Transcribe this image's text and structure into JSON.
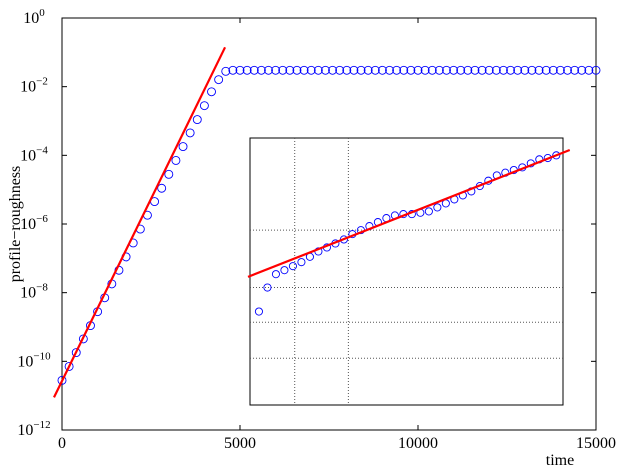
{
  "chart_data": [
    {
      "type": "scatter",
      "xlabel": "time",
      "ylabel": "profile−roughness",
      "xlim": [
        0,
        15000
      ],
      "ylim": [
        1e-12,
        1
      ],
      "yscale": "log",
      "xticks": [
        0,
        5000,
        10000,
        15000
      ],
      "yticks": [
        {
          "value": 1e-12,
          "label": "10",
          "exponent": "−12"
        },
        {
          "value": 1e-10,
          "label": "10",
          "exponent": "−10"
        },
        {
          "value": 1e-08,
          "label": "10",
          "exponent": "−8"
        },
        {
          "value": 1e-06,
          "label": "10",
          "exponent": "−6"
        },
        {
          "value": 0.0001,
          "label": "10",
          "exponent": "−4"
        },
        {
          "value": 0.01,
          "label": "10",
          "exponent": "−2"
        },
        {
          "value": 1,
          "label": "10",
          "exponent": "0"
        }
      ],
      "series": [
        {
          "mode": "markers",
          "color": "#0000ff",
          "x": [
            0,
            200,
            400,
            600,
            800,
            1000,
            1200,
            1400,
            1600,
            1800,
            2000,
            2200,
            2400,
            2600,
            2800,
            3000,
            3200,
            3400,
            3600,
            3800,
            4000,
            4200,
            4400,
            4600,
            4800,
            5000,
            5200,
            5400,
            5600,
            5800,
            6000,
            6200,
            6400,
            6600,
            6800,
            7000,
            7200,
            7400,
            7600,
            7800,
            8000,
            8200,
            8400,
            8600,
            8800,
            9000,
            9200,
            9400,
            9600,
            9800,
            10000,
            10200,
            10400,
            10600,
            10800,
            11000,
            11200,
            11400,
            11600,
            11800,
            12000,
            12200,
            12400,
            12600,
            12800,
            13000,
            13200,
            13400,
            13600,
            13800,
            14000,
            14200,
            14400,
            14600,
            14800,
            15000
          ],
          "values": [
            2.8e-11,
            7.1e-11,
            1.8e-10,
            4.5e-10,
            1.1e-09,
            2.8e-09,
            7.1e-09,
            1.8e-08,
            4.5e-08,
            1.1e-07,
            2.8e-07,
            7.1e-07,
            1.8e-06,
            4.5e-06,
            1.1e-05,
            2.8e-05,
            7.1e-05,
            0.00018,
            0.00045,
            0.0011,
            0.0028,
            0.0071,
            0.016,
            0.028,
            0.03,
            0.03,
            0.03,
            0.03,
            0.03,
            0.03,
            0.03,
            0.03,
            0.03,
            0.03,
            0.03,
            0.03,
            0.03,
            0.03,
            0.03,
            0.03,
            0.03,
            0.03,
            0.03,
            0.03,
            0.03,
            0.03,
            0.03,
            0.03,
            0.03,
            0.03,
            0.03,
            0.03,
            0.03,
            0.03,
            0.03,
            0.03,
            0.03,
            0.03,
            0.03,
            0.03,
            0.03,
            0.03,
            0.03,
            0.03,
            0.03,
            0.03,
            0.03,
            0.03,
            0.03,
            0.03,
            0.03,
            0.03,
            0.03,
            0.03,
            0.03,
            0.03
          ]
        },
        {
          "mode": "line",
          "color": "#ff0000",
          "x": [
            -225,
            4580
          ],
          "values": [
            8.9e-12,
            0.14
          ]
        }
      ]
    },
    {
      "type": "scatter",
      "inset": true,
      "grid": true,
      "xlim": [
        4500,
        15000
      ],
      "ylim": [
        0.02,
        0.04
      ],
      "xticks": [
        6000,
        7800
      ],
      "yticks": [
        0.0235,
        0.0262,
        0.0288,
        0.0331
      ],
      "series": [
        {
          "mode": "markers",
          "color": "#0000ff",
          "x": [
            4800,
            5085,
            5370,
            5655,
            5940,
            6225,
            6510,
            6795,
            7080,
            7365,
            7650,
            7935,
            8220,
            8505,
            8790,
            9075,
            9360,
            9645,
            9930,
            10215,
            10500,
            10785,
            11070,
            11355,
            11640,
            11925,
            12210,
            12495,
            12780,
            13065,
            13350,
            13635,
            13920,
            14205,
            14490,
            14775
          ],
          "values": [
            0.027,
            0.0288,
            0.0298,
            0.0301,
            0.0304,
            0.0307,
            0.0311,
            0.0315,
            0.0318,
            0.0321,
            0.0324,
            0.0328,
            0.0331,
            0.0334,
            0.0337,
            0.034,
            0.0342,
            0.0343,
            0.0343,
            0.0344,
            0.0345,
            0.0348,
            0.0351,
            0.0354,
            0.0357,
            0.036,
            0.0364,
            0.0368,
            0.0372,
            0.0374,
            0.0376,
            0.0378,
            0.0381,
            0.0384,
            0.0385,
            0.0387
          ]
        },
        {
          "mode": "line",
          "color": "#ff0000",
          "x": [
            4433,
            15226
          ],
          "values": [
            0.0296,
            0.0391
          ]
        }
      ]
    }
  ]
}
